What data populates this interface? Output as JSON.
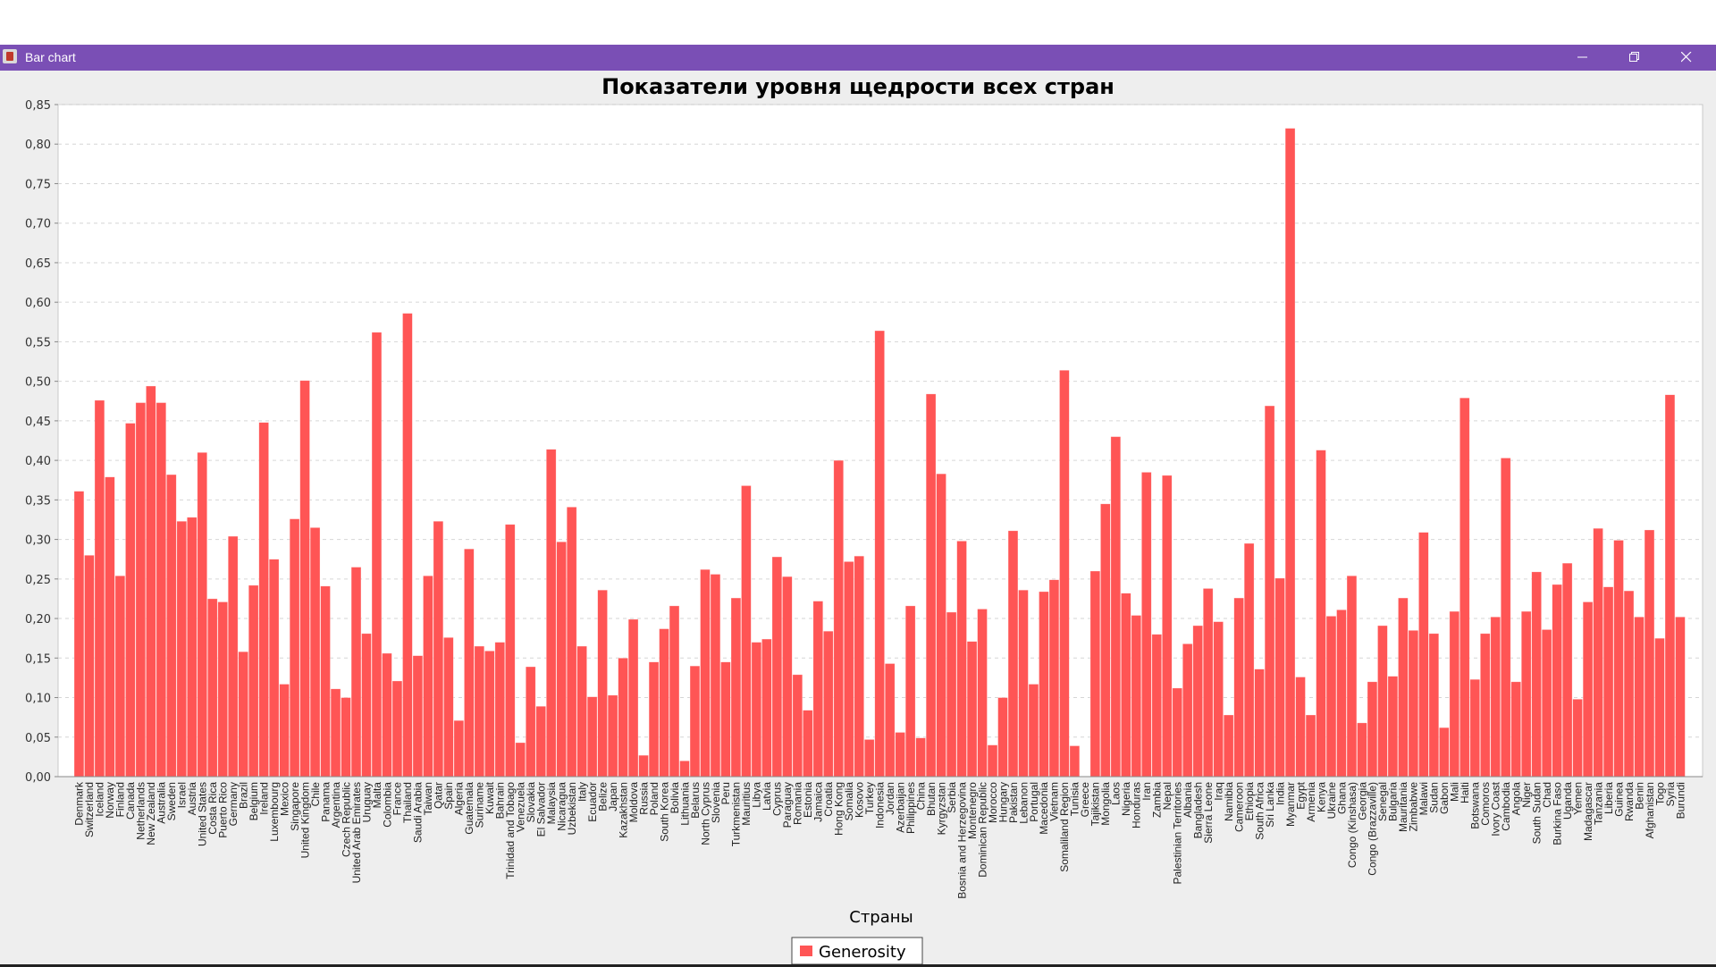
{
  "window": {
    "title": "Bar chart",
    "titlebar_color": "#7a4fb5",
    "controls": [
      "minimize-icon",
      "restore-icon",
      "close-icon"
    ]
  },
  "chart_data": {
    "type": "bar",
    "title": "Показатели уровня щедрости всех стран",
    "xlabel": "Страны",
    "ylabel": "",
    "ylim": [
      0,
      0.85
    ],
    "yticks": [
      "0,00",
      "0,05",
      "0,10",
      "0,15",
      "0,20",
      "0,25",
      "0,30",
      "0,35",
      "0,40",
      "0,45",
      "0,50",
      "0,55",
      "0,60",
      "0,65",
      "0,70",
      "0,75",
      "0,80",
      "0,85"
    ],
    "grid": "horizontal dashed",
    "legend_position": "bottom-center",
    "bar_color": "#ff5555",
    "series": [
      {
        "name": "Generosity",
        "values": [
          0.361,
          0.28,
          0.476,
          0.379,
          0.254,
          0.447,
          0.473,
          0.494,
          0.473,
          0.382,
          0.323,
          0.328,
          0.41,
          0.225,
          0.221,
          0.304,
          0.158,
          0.242,
          0.448,
          0.275,
          0.117,
          0.326,
          0.501,
          0.315,
          0.241,
          0.111,
          0.1,
          0.265,
          0.181,
          0.562,
          0.156,
          0.121,
          0.586,
          0.153,
          0.254,
          0.323,
          0.176,
          0.071,
          0.288,
          0.165,
          0.159,
          0.17,
          0.319,
          0.043,
          0.139,
          0.089,
          0.414,
          0.297,
          0.341,
          0.165,
          0.101,
          0.236,
          0.103,
          0.15,
          0.199,
          0.027,
          0.145,
          0.187,
          0.216,
          0.02,
          0.14,
          0.262,
          0.256,
          0.145,
          0.226,
          0.368,
          0.17,
          0.174,
          0.278,
          0.253,
          0.129,
          0.084,
          0.222,
          0.184,
          0.4,
          0.272,
          0.279,
          0.047,
          0.564,
          0.143,
          0.056,
          0.216,
          0.049,
          0.484,
          0.383,
          0.208,
          0.298,
          0.171,
          0.212,
          0.04,
          0.1,
          0.311,
          0.236,
          0.117,
          0.234,
          0.249,
          0.514,
          0.039,
          0.0,
          0.26,
          0.345,
          0.43,
          0.232,
          0.204,
          0.385,
          0.18,
          0.381,
          0.112,
          0.168,
          0.191,
          0.238,
          0.196,
          0.078,
          0.226,
          0.295,
          0.136,
          0.469,
          0.251,
          0.82,
          0.126,
          0.078,
          0.413,
          0.203,
          0.211,
          0.254,
          0.068,
          0.12,
          0.191,
          0.127,
          0.226,
          0.185,
          0.309,
          0.181,
          0.062,
          0.209,
          0.479,
          0.123,
          0.181,
          0.202,
          0.403,
          0.12,
          0.209,
          0.259,
          0.186,
          0.243,
          0.27,
          0.098,
          0.221,
          0.314,
          0.24,
          0.299,
          0.235,
          0.202,
          0.312,
          0.175,
          0.483,
          0.202
        ]
      }
    ],
    "categories": [
      "Denmark",
      "Switzerland",
      "Iceland",
      "Norway",
      "Finland",
      "Canada",
      "Netherlands",
      "New Zealand",
      "Australia",
      "Sweden",
      "Israel",
      "Austria",
      "United States",
      "Costa Rica",
      "Puerto Rico",
      "Germany",
      "Brazil",
      "Belgium",
      "Ireland",
      "Luxembourg",
      "Mexico",
      "Singapore",
      "United Kingdom",
      "Chile",
      "Panama",
      "Argentina",
      "Czech Republic",
      "United Arab Emirates",
      "Uruguay",
      "Malta",
      "Colombia",
      "France",
      "Thailand",
      "Saudi Arabia",
      "Taiwan",
      "Qatar",
      "Spain",
      "Algeria",
      "Guatemala",
      "Suriname",
      "Kuwait",
      "Bahrain",
      "Trinidad and Tobago",
      "Venezuela",
      "Slovakia",
      "El Salvador",
      "Malaysia",
      "Nicaragua",
      "Uzbekistan",
      "Italy",
      "Ecuador",
      "Belize",
      "Japan",
      "Kazakhstan",
      "Moldova",
      "Russia",
      "Poland",
      "South Korea",
      "Bolivia",
      "Lithuania",
      "Belarus",
      "North Cyprus",
      "Slovenia",
      "Peru",
      "Turkmenistan",
      "Mauritius",
      "Libya",
      "Latvia",
      "Cyprus",
      "Paraguay",
      "Romania",
      "Estonia",
      "Jamaica",
      "Croatia",
      "Hong Kong",
      "Somalia",
      "Kosovo",
      "Turkey",
      "Indonesia",
      "Jordan",
      "Azerbaijan",
      "Philippines",
      "China",
      "Bhutan",
      "Kyrgyzstan",
      "Serbia",
      "Bosnia and Herzegovina",
      "Montenegro",
      "Dominican Republic",
      "Morocco",
      "Hungary",
      "Pakistan",
      "Lebanon",
      "Portugal",
      "Macedonia",
      "Vietnam",
      "Somaliland Region",
      "Tunisia",
      "Greece",
      "Tajikistan",
      "Mongolia",
      "Laos",
      "Nigeria",
      "Honduras",
      "Iran",
      "Zambia",
      "Nepal",
      "Palestinian Territories",
      "Albania",
      "Bangladesh",
      "Sierra Leone",
      "Iraq",
      "Namibia",
      "Cameroon",
      "Ethiopia",
      "South Africa",
      "Sri Lanka",
      "India",
      "Myanmar",
      "Egypt",
      "Armenia",
      "Kenya",
      "Ukraine",
      "Ghana",
      "Congo (Kinshasa)",
      "Georgia",
      "Congo (Brazzaville)",
      "Senegal",
      "Bulgaria",
      "Mauritania",
      "Zimbabwe",
      "Malawi",
      "Sudan",
      "Gabon",
      "Mali",
      "Haiti",
      "Botswana",
      "Comoros",
      "Ivory Coast",
      "Cambodia",
      "Angola",
      "Niger",
      "South Sudan",
      "Chad",
      "Burkina Faso",
      "Uganda",
      "Yemen",
      "Madagascar",
      "Tanzania",
      "Liberia",
      "Guinea",
      "Rwanda",
      "Benin",
      "Afghanistan",
      "Togo",
      "Syria",
      "Burundi"
    ]
  }
}
